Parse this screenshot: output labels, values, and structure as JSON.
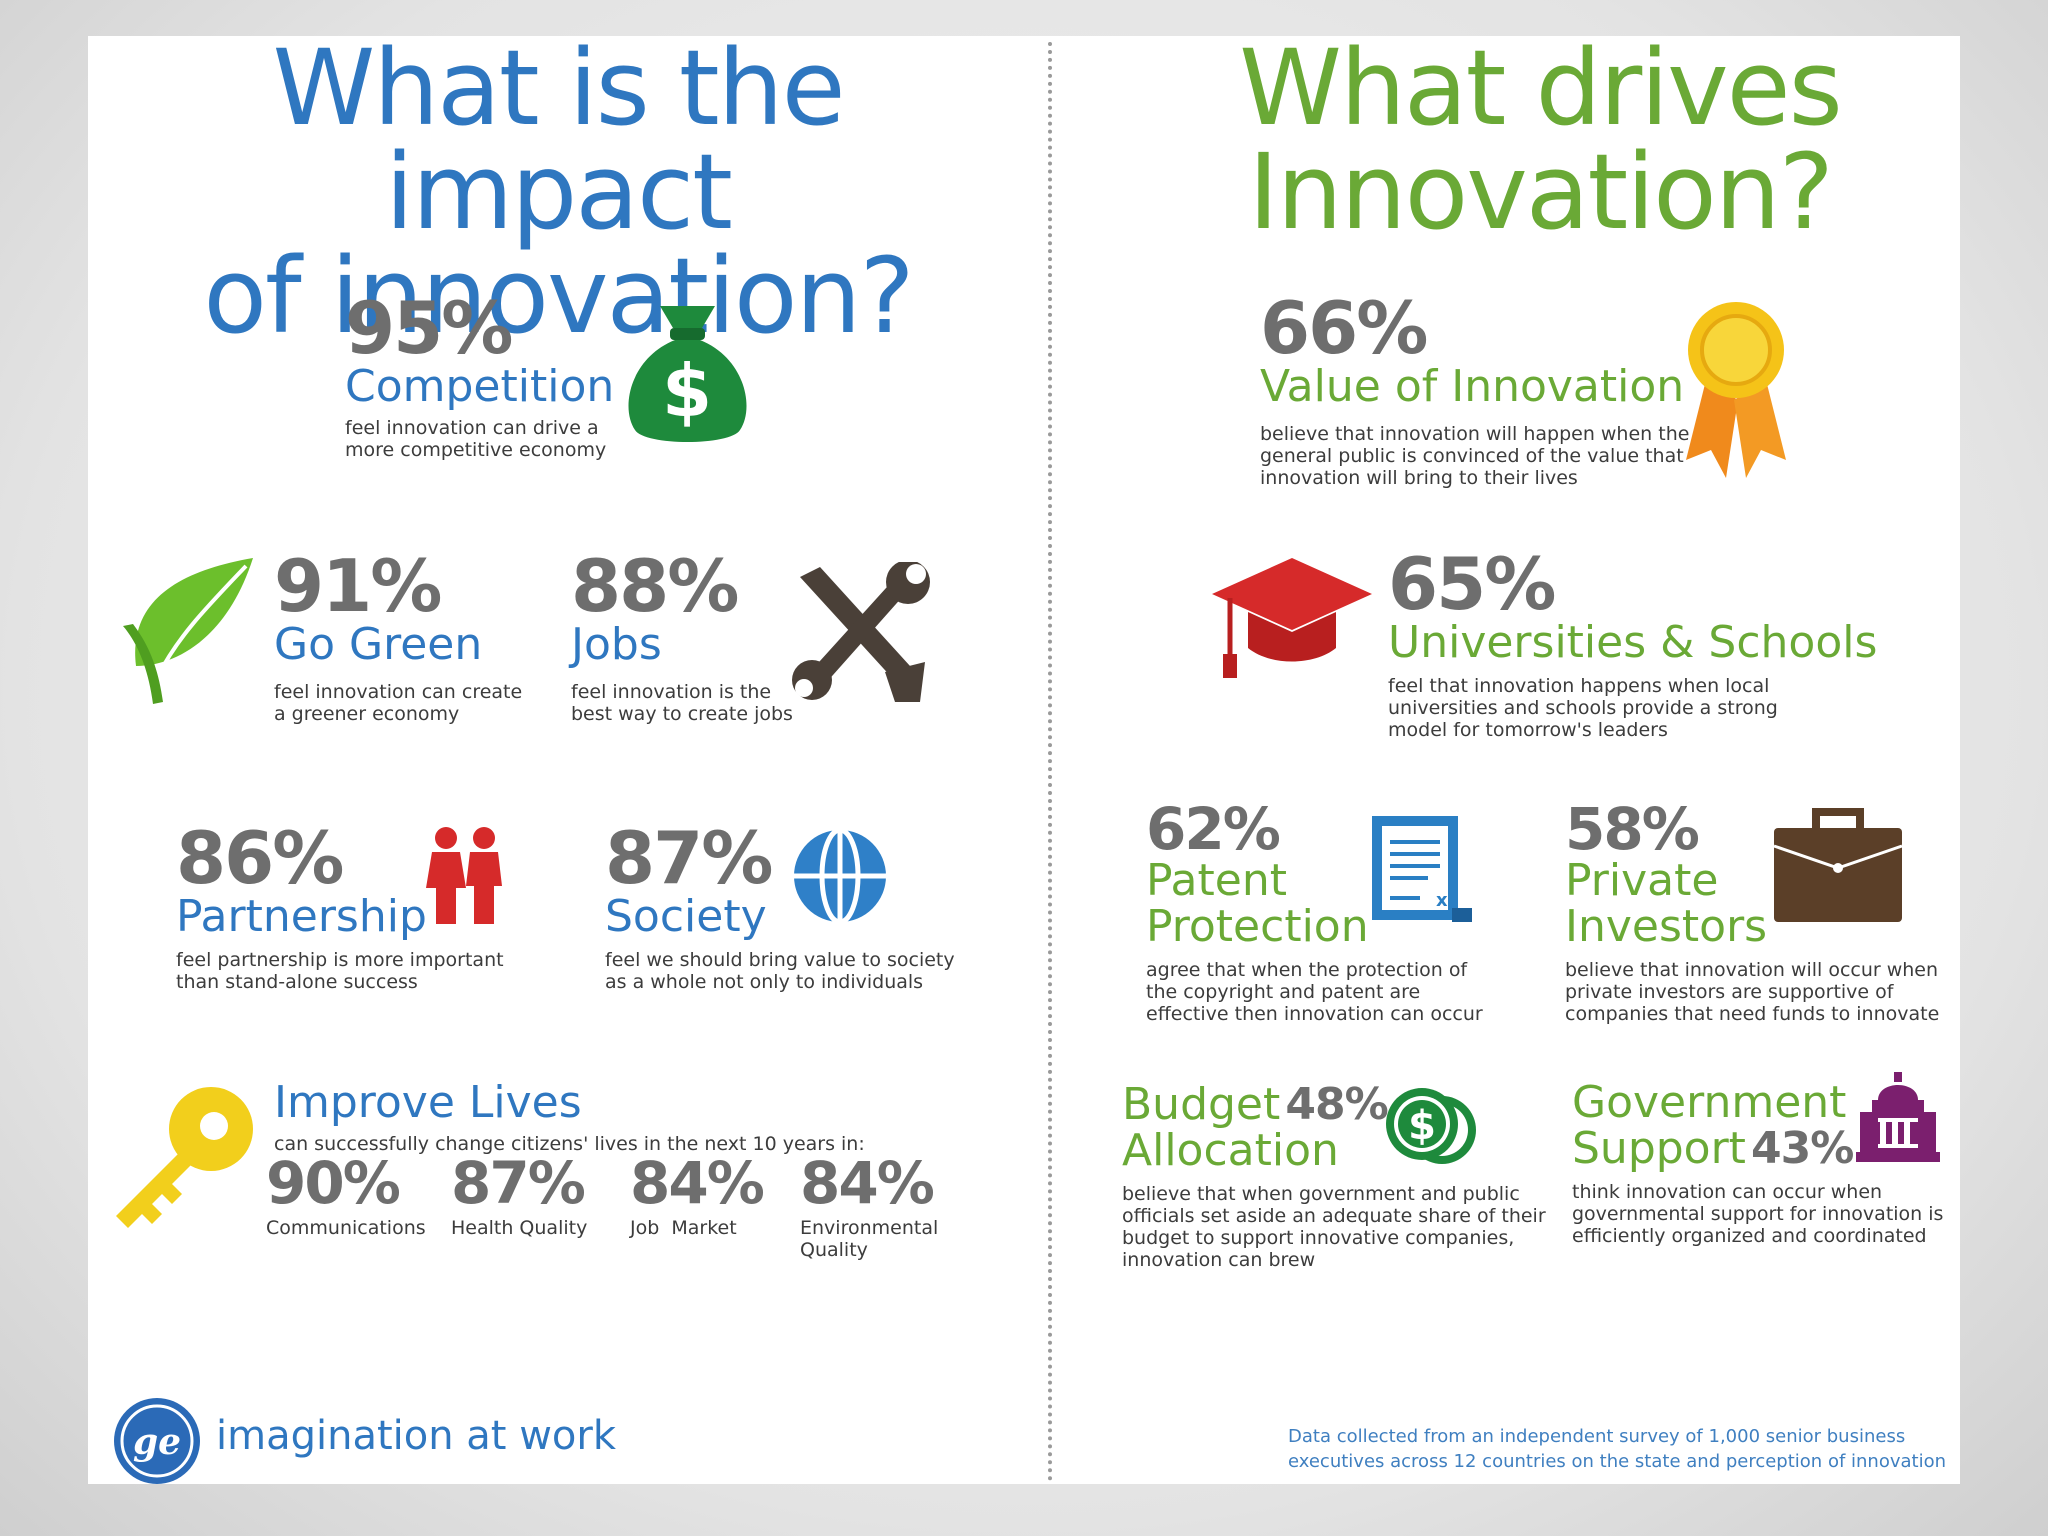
{
  "left": {
    "title_line1": "What is the impact",
    "title_line2": "of innovation?",
    "competition": {
      "pct": "95%",
      "label": "Competition",
      "desc1": "feel innovation can drive a",
      "desc2": "more competitive economy"
    },
    "go_green": {
      "pct": "91%",
      "label": "Go Green",
      "desc1": "feel innovation can create",
      "desc2": "a greener economy"
    },
    "jobs": {
      "pct": "88%",
      "label": "Jobs",
      "desc1": "feel innovation is the",
      "desc2": "best way to create jobs"
    },
    "partnership": {
      "pct": "86%",
      "label": "Partnership",
      "desc1": "feel partnership is more important",
      "desc2": "than stand-alone success"
    },
    "society": {
      "pct": "87%",
      "label": "Society",
      "desc1": "feel we should bring value to society",
      "desc2": "as a whole not only to individuals"
    },
    "improve_lives": {
      "label": "Improve Lives",
      "desc": "can successfully change citizens' lives in the next 10 years in:",
      "items": [
        {
          "pct": "90%",
          "cap1": "Communications",
          "cap2": ""
        },
        {
          "pct": "87%",
          "cap1": "Health Quality",
          "cap2": ""
        },
        {
          "pct": "84%",
          "cap1": "Job  Market",
          "cap2": ""
        },
        {
          "pct": "84%",
          "cap1": "Environmental",
          "cap2": "Quality"
        }
      ]
    },
    "brand_tagline": "imagination at work"
  },
  "right": {
    "title_line1": "What drives",
    "title_line2": "Innovation?",
    "value": {
      "pct": "66%",
      "label": "Value of Innovation",
      "desc1": "believe that innovation will happen when the",
      "desc2": "general public is convinced of the value that",
      "desc3": "innovation will bring to their lives"
    },
    "universities": {
      "pct": "65%",
      "label": "Universities & Schools",
      "desc1": "feel that innovation happens when local",
      "desc2": "universities and schools provide a strong",
      "desc3": "model for tomorrow's leaders"
    },
    "patent": {
      "pct": "62%",
      "label1": "Patent",
      "label2": "Protection",
      "desc1": "agree that when the protection of",
      "desc2": "the copyright and patent are",
      "desc3": "effective then innovation can occur"
    },
    "investors": {
      "pct": "58%",
      "label1": "Private",
      "label2": "Investors",
      "desc1": "believe that innovation will occur when",
      "desc2": "private investors are supportive of",
      "desc3": "companies that need funds to innovate"
    },
    "budget": {
      "pct": "48%",
      "label1": "Budget",
      "label2": "Allocation",
      "desc1": "believe that when government and public",
      "desc2": "officials set aside an adequate share of their",
      "desc3": "budget to support innovative companies,",
      "desc4": "innovation can brew"
    },
    "government": {
      "pct": "43%",
      "label1": "Government",
      "label2": "Support",
      "desc1": "think innovation can occur when",
      "desc2": "governmental support for innovation is",
      "desc3": "efficiently organized and coordinated"
    },
    "footnote1": "Data collected from an independent survey of 1,000 senior business",
    "footnote2": "executives across 12 countries on the state and perception of innovation"
  },
  "colors": {
    "blue": "#2f77c0",
    "green": "#6aa936",
    "gray": "#6e6e6e",
    "money_green": "#1e8a3c",
    "red": "#d62a2a",
    "gold": "#f5c318",
    "brown": "#5b3f28",
    "purple": "#7b1f6e"
  },
  "icons": [
    "money-bag-icon",
    "leaf-icon",
    "tools-icon",
    "people-icon",
    "globe-icon",
    "key-icon",
    "ribbon-icon",
    "graduation-cap-icon",
    "document-icon",
    "briefcase-icon",
    "coins-icon",
    "government-building-icon",
    "ge-logo-icon"
  ]
}
